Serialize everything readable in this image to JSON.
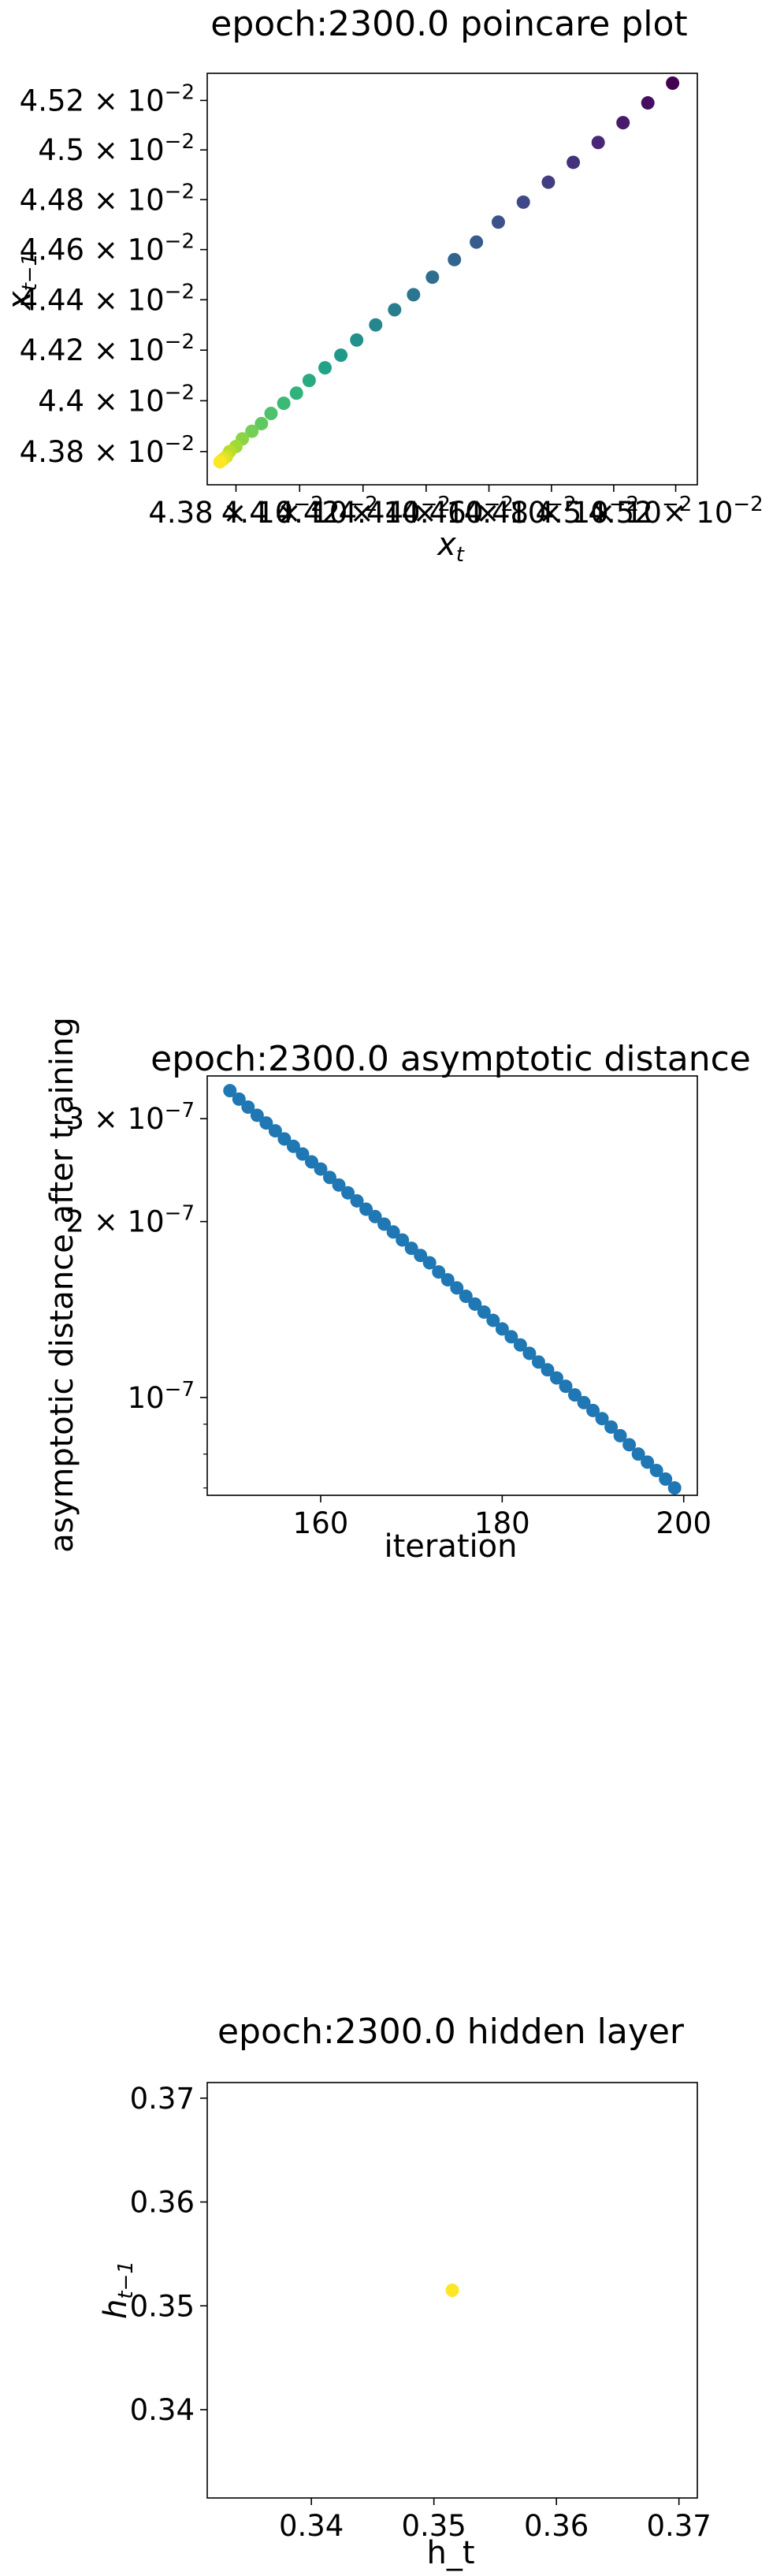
{
  "chart_data": [
    {
      "type": "scatter",
      "title": "epoch:2300.0 poincare plot",
      "xlabel": "x_t",
      "ylabel": "x_{t-1}",
      "x_scale": "log",
      "y_scale": "log",
      "xlim": [
        0.04371,
        0.04527
      ],
      "ylim": [
        0.04367,
        0.04531
      ],
      "color_map": "viridis",
      "grid": false,
      "legend": "none",
      "xticks": [
        {
          "v": 0.0438,
          "base": "4.38 × 10",
          "exp": "−2"
        },
        {
          "v": 0.044,
          "base": "4.4 × 10",
          "exp": "−2"
        },
        {
          "v": 0.0442,
          "base": "4.42 × 10",
          "exp": "−2"
        },
        {
          "v": 0.0444,
          "base": "4.44 × 10",
          "exp": "−2"
        },
        {
          "v": 0.0446,
          "base": "4.46 × 10",
          "exp": "−2"
        },
        {
          "v": 0.0448,
          "base": "4.48 × 10",
          "exp": "−2"
        },
        {
          "v": 0.045,
          "base": "4.5 × 10",
          "exp": "−2"
        },
        {
          "v": 0.0452,
          "base": "4.52 × 10",
          "exp": "−2"
        }
      ],
      "yticks": [
        {
          "v": 0.0438,
          "base": "4.38 × 10",
          "exp": "−2"
        },
        {
          "v": 0.044,
          "base": "4.4 × 10",
          "exp": "−2"
        },
        {
          "v": 0.0442,
          "base": "4.42 × 10",
          "exp": "−2"
        },
        {
          "v": 0.0444,
          "base": "4.44 × 10",
          "exp": "−2"
        },
        {
          "v": 0.0446,
          "base": "4.46 × 10",
          "exp": "−2"
        },
        {
          "v": 0.0448,
          "base": "4.48 × 10",
          "exp": "−2"
        },
        {
          "v": 0.045,
          "base": "4.5 × 10",
          "exp": "−2"
        },
        {
          "v": 0.0452,
          "base": "4.52 × 10",
          "exp": "−2"
        }
      ],
      "points": {
        "x": [
          0.04519,
          0.04511,
          0.04503,
          0.04495,
          0.04487,
          0.04479,
          0.04471,
          0.04463,
          0.04456,
          0.04449,
          0.04442,
          0.04436,
          0.0443,
          0.04424,
          0.04418,
          0.04413,
          0.04408,
          0.04403,
          0.04399,
          0.04395,
          0.04391,
          0.04388,
          0.04385,
          0.04382,
          0.0438,
          0.04378,
          0.04377,
          0.04376,
          0.04375
        ],
        "y": [
          0.04527,
          0.04519,
          0.04511,
          0.04503,
          0.04495,
          0.04487,
          0.04479,
          0.04471,
          0.04463,
          0.04456,
          0.04449,
          0.04442,
          0.04436,
          0.0443,
          0.04424,
          0.04418,
          0.04413,
          0.04408,
          0.04403,
          0.04399,
          0.04395,
          0.04391,
          0.04388,
          0.04385,
          0.04382,
          0.0438,
          0.04378,
          0.04377,
          0.04376
        ]
      }
    },
    {
      "type": "scatter",
      "title": "epoch:2300.0 asymptotic distance",
      "xlabel": "iteration",
      "ylabel": "asymptotic distance after training",
      "y_scale": "log",
      "xlim": [
        147.5,
        201.5
      ],
      "ylim": [
        6.8e-08,
        3.55e-07
      ],
      "marker_color": "#1f77b4",
      "grid": false,
      "legend": "none",
      "xticks": [
        {
          "v": 160,
          "label": "160"
        },
        {
          "v": 180,
          "label": "180"
        },
        {
          "v": 200,
          "label": "200"
        }
      ],
      "yticks": [
        {
          "v": 1e-07,
          "base": "10",
          "exp": "−7"
        },
        {
          "v": 2e-07,
          "base": "2 × 10",
          "exp": "−7"
        },
        {
          "v": 3e-07,
          "base": "3 × 10",
          "exp": "−7"
        }
      ],
      "points": {
        "x": [
          150,
          151,
          152,
          153,
          154,
          155,
          156,
          157,
          158,
          159,
          160,
          161,
          162,
          163,
          164,
          165,
          166,
          167,
          168,
          169,
          170,
          171,
          172,
          173,
          174,
          175,
          176,
          177,
          178,
          179,
          180,
          181,
          182,
          183,
          184,
          185,
          186,
          187,
          188,
          189,
          190,
          191,
          192,
          193,
          194,
          195,
          196,
          197,
          198,
          199
        ],
        "y": [
          3.35e-07,
          3.24e-07,
          3.14e-07,
          3.04e-07,
          2.95e-07,
          2.86e-07,
          2.77e-07,
          2.69e-07,
          2.61e-07,
          2.53e-07,
          2.46e-07,
          2.38e-07,
          2.31e-07,
          2.24e-07,
          2.17e-07,
          2.1e-07,
          2.04e-07,
          1.98e-07,
          1.92e-07,
          1.86e-07,
          1.8e-07,
          1.75e-07,
          1.7e-07,
          1.64e-07,
          1.59e-07,
          1.54e-07,
          1.49e-07,
          1.445e-07,
          1.4e-07,
          1.355e-07,
          1.31e-07,
          1.27e-07,
          1.23e-07,
          1.19e-07,
          1.15e-07,
          1.115e-07,
          1.08e-07,
          1.045e-07,
          1.01e-07,
          9.8e-08,
          9.5e-08,
          9.2e-08,
          8.9e-08,
          8.6e-08,
          8.3e-08,
          8e-08,
          7.75e-08,
          7.5e-08,
          7.25e-08,
          7e-08
        ]
      }
    },
    {
      "type": "scatter",
      "title": "epoch:2300.0 hidden layer",
      "xlabel": "h_t",
      "ylabel": "h_{t-1}",
      "xlim": [
        0.3315,
        0.3715
      ],
      "ylim": [
        0.3315,
        0.3715
      ],
      "marker_color": "#fde725",
      "grid": false,
      "legend": "none",
      "xticks": [
        {
          "v": 0.34,
          "label": "0.34"
        },
        {
          "v": 0.35,
          "label": "0.35"
        },
        {
          "v": 0.36,
          "label": "0.36"
        },
        {
          "v": 0.37,
          "label": "0.37"
        }
      ],
      "yticks": [
        {
          "v": 0.34,
          "label": "0.34"
        },
        {
          "v": 0.35,
          "label": "0.35"
        },
        {
          "v": 0.36,
          "label": "0.36"
        },
        {
          "v": 0.37,
          "label": "0.37"
        }
      ],
      "points": {
        "x": [
          0.3515
        ],
        "y": [
          0.3515
        ]
      }
    }
  ]
}
